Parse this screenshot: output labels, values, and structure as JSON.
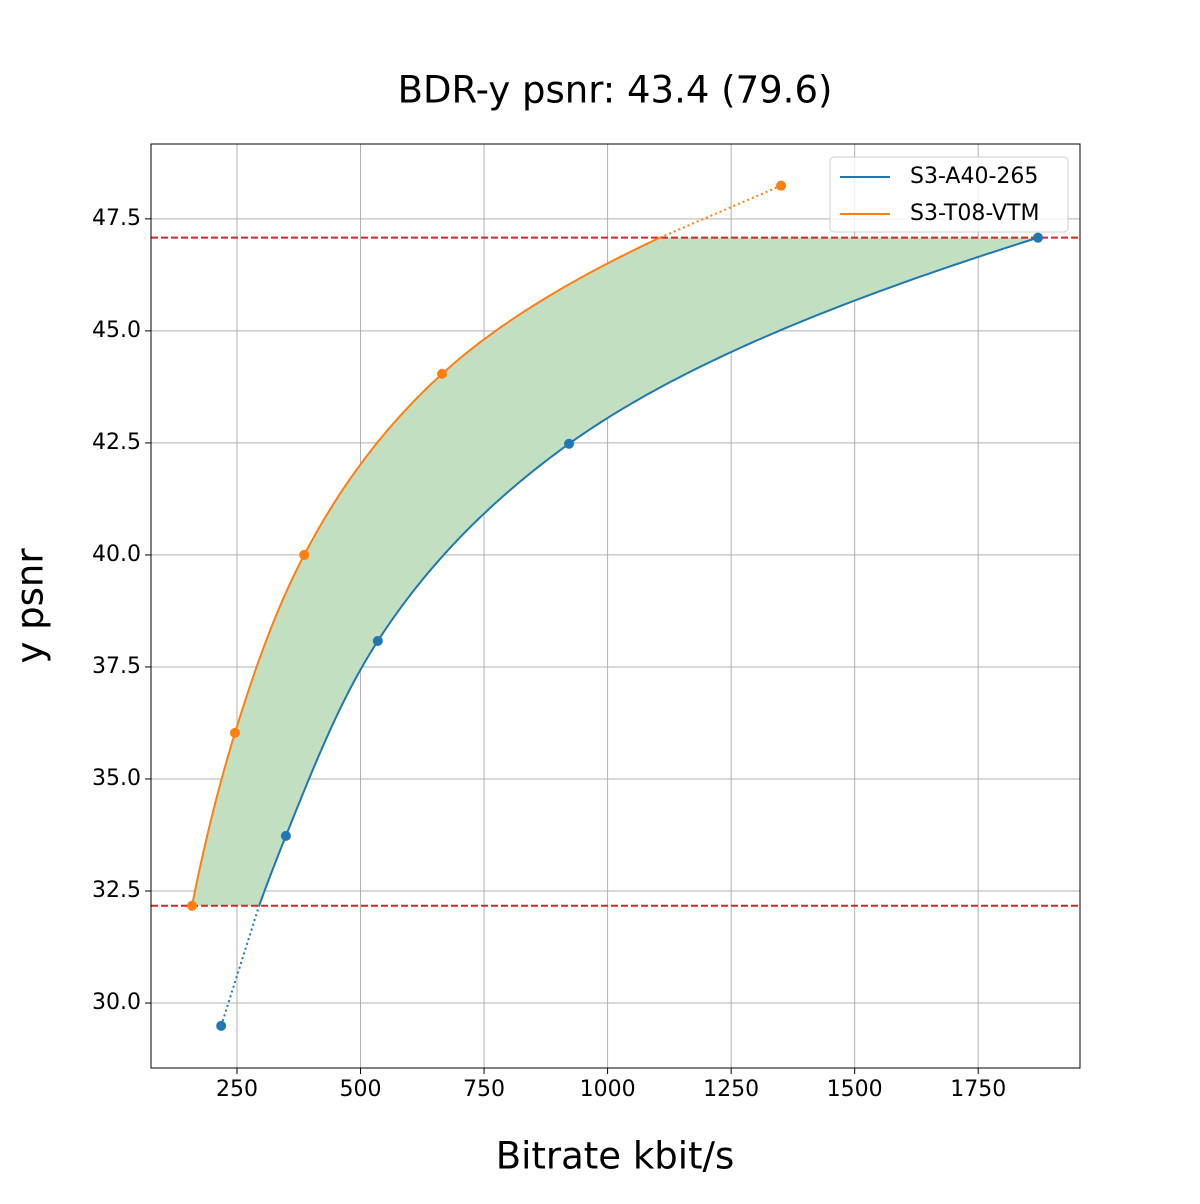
{
  "chart_data": {
    "type": "line",
    "title": "BDR-y psnr: 43.4 (79.6)",
    "x_label": "Bitrate kbit/s",
    "y_label": "y psnr",
    "series": [
      {
        "name": "S3-A40-265",
        "color": "#1f77b4",
        "x": [
          218,
          349,
          535,
          922,
          1871
        ],
        "values": [
          29.49,
          33.73,
          38.08,
          42.48,
          47.08
        ]
      },
      {
        "name": "S3-T08-VTM",
        "color": "#ff7f0e",
        "x": [
          159,
          246,
          386,
          665,
          1351
        ],
        "values": [
          32.17,
          36.03,
          40.0,
          44.04,
          48.24
        ]
      }
    ],
    "xlim": [
      76,
      1956
    ],
    "xticks": [
      250,
      500,
      750,
      1000,
      1250,
      1500,
      1750
    ],
    "ylim": [
      28.55,
      49.17
    ],
    "yticks": [
      {
        "value": 30,
        "label": "30.0"
      },
      {
        "value": 32.5,
        "label": "32.5"
      },
      {
        "value": 35,
        "label": "35.0"
      },
      {
        "value": 37.5,
        "label": "37.5"
      },
      {
        "value": 40,
        "label": "40.0"
      },
      {
        "value": 42.5,
        "label": "42.5"
      },
      {
        "value": 45,
        "label": "45.0"
      },
      {
        "value": 47.5,
        "label": "47.5"
      }
    ],
    "grid": true,
    "legend": "upper right",
    "fill_color": "#c2dfc2",
    "limit_color": "#d62728"
  }
}
